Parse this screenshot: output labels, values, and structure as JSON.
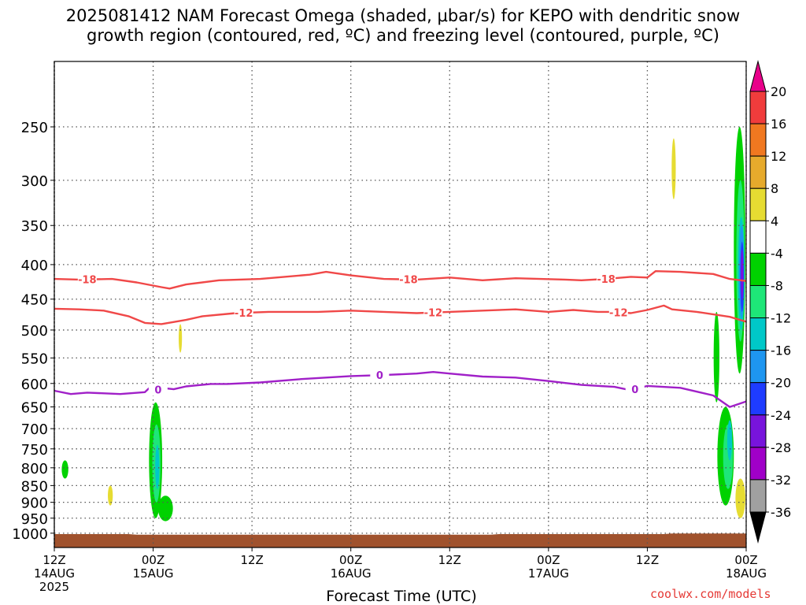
{
  "title": {
    "line1": "2025081412 NAM Forecast Omega (shaded, μbar/s) for KEPO with dendritic snow",
    "line2": "growth region (contoured, red, ºC) and freezing level (contoured, purple, ºC)"
  },
  "credit": "coolwx.com/models",
  "chart_data": {
    "type": "time-height",
    "xlabel": "Forecast Time (UTC)",
    "ylabel": "",
    "y_scale": "log-pressure",
    "ylim": [
      1050,
      200
    ],
    "xlim": [
      0,
      84
    ],
    "grid": true,
    "x_ticks": [
      {
        "hour": 0,
        "line1": "12Z",
        "line2": "14AUG",
        "line3": "2025"
      },
      {
        "hour": 12,
        "line1": "00Z",
        "line2": "15AUG",
        "line3": ""
      },
      {
        "hour": 24,
        "line1": "12Z",
        "line2": "",
        "line3": ""
      },
      {
        "hour": 36,
        "line1": "00Z",
        "line2": "16AUG",
        "line3": ""
      },
      {
        "hour": 48,
        "line1": "12Z",
        "line2": "",
        "line3": ""
      },
      {
        "hour": 60,
        "line1": "00Z",
        "line2": "17AUG",
        "line3": ""
      },
      {
        "hour": 72,
        "line1": "12Z",
        "line2": "",
        "line3": ""
      },
      {
        "hour": 84,
        "line1": "00Z",
        "line2": "18AUG",
        "line3": ""
      }
    ],
    "y_ticks": [
      250,
      300,
      350,
      400,
      450,
      500,
      550,
      600,
      650,
      700,
      750,
      800,
      850,
      900,
      950,
      1000
    ],
    "colorbar": {
      "labels": [
        "20",
        "16",
        "12",
        "8",
        "4",
        "-4",
        "-8",
        "-12",
        "-16",
        "-20",
        "-24",
        "-28",
        "-32",
        "-36"
      ],
      "colors": [
        "#e8008a",
        "#f03c3c",
        "#f07820",
        "#e6aa2c",
        "#e6dc32",
        "#ffffff",
        "#00d200",
        "#1ee678",
        "#00c8c8",
        "#1e96f0",
        "#1e3cff",
        "#7814dc",
        "#a000c8",
        "#a0a0a0",
        "#000000"
      ]
    },
    "contours": [
      {
        "name": "-18",
        "color": "#f04848",
        "label_hours": [
          4,
          43,
          67
        ],
        "points": [
          [
            0,
            420
          ],
          [
            3,
            421
          ],
          [
            7,
            420
          ],
          [
            10,
            425
          ],
          [
            13,
            432
          ],
          [
            14,
            434
          ],
          [
            16,
            428
          ],
          [
            20,
            422
          ],
          [
            25,
            420
          ],
          [
            31,
            414
          ],
          [
            33,
            410
          ],
          [
            36,
            415
          ],
          [
            40,
            420
          ],
          [
            44,
            421
          ],
          [
            48,
            418
          ],
          [
            52,
            422
          ],
          [
            56,
            419
          ],
          [
            62,
            421
          ],
          [
            64,
            422
          ],
          [
            67,
            420
          ],
          [
            70,
            417
          ],
          [
            72,
            418
          ],
          [
            73,
            409
          ],
          [
            76,
            410
          ],
          [
            80,
            413
          ],
          [
            82,
            420
          ],
          [
            84,
            423
          ]
        ]
      },
      {
        "name": "-12",
        "color": "#f04848",
        "label_hours": [
          23,
          46,
          68.5
        ],
        "points": [
          [
            0,
            465
          ],
          [
            3,
            466
          ],
          [
            6,
            468
          ],
          [
            9,
            477
          ],
          [
            11,
            488
          ],
          [
            13,
            490
          ],
          [
            16,
            483
          ],
          [
            18,
            477
          ],
          [
            22,
            472
          ],
          [
            26,
            470
          ],
          [
            32,
            470
          ],
          [
            36,
            468
          ],
          [
            40,
            470
          ],
          [
            44,
            472
          ],
          [
            48,
            470
          ],
          [
            52,
            468
          ],
          [
            56,
            466
          ],
          [
            60,
            470
          ],
          [
            63,
            467
          ],
          [
            66,
            470
          ],
          [
            68,
            470
          ],
          [
            70,
            472
          ],
          [
            72,
            467
          ],
          [
            74,
            460
          ],
          [
            75,
            466
          ],
          [
            78,
            470
          ],
          [
            82,
            478
          ],
          [
            84,
            486
          ]
        ]
      },
      {
        "name": "0",
        "color": "#a020c8",
        "label_hours": [
          12.6,
          39.5,
          70.5
        ],
        "points": [
          [
            0,
            615
          ],
          [
            2,
            622
          ],
          [
            4,
            619
          ],
          [
            8,
            622
          ],
          [
            11,
            618
          ],
          [
            11.5,
            610
          ],
          [
            12.5,
            613
          ],
          [
            13.5,
            610
          ],
          [
            14.5,
            612
          ],
          [
            16,
            606
          ],
          [
            19,
            601
          ],
          [
            21,
            601
          ],
          [
            25,
            598
          ],
          [
            30,
            591
          ],
          [
            36,
            585
          ],
          [
            40,
            583
          ],
          [
            44,
            580
          ],
          [
            46,
            577
          ],
          [
            48,
            580
          ],
          [
            52,
            586
          ],
          [
            56,
            588
          ],
          [
            60,
            595
          ],
          [
            64,
            603
          ],
          [
            68,
            607
          ],
          [
            70,
            614
          ],
          [
            72,
            605
          ],
          [
            76,
            609
          ],
          [
            80,
            625
          ],
          [
            82,
            650
          ],
          [
            84,
            638
          ]
        ]
      }
    ],
    "shaded": [
      {
        "value": -6,
        "color": "#00d200",
        "center": [
          1.3,
          795
        ],
        "rx_h": 0.4,
        "p_range": [
          780,
          830
        ]
      },
      {
        "value": 6,
        "color": "#e6dc32",
        "center": [
          6.8,
          880
        ],
        "rx_h": 0.3,
        "p_range": [
          850,
          910
        ]
      },
      {
        "value": -6,
        "color": "#00d200",
        "center": [
          12.3,
          790
        ],
        "rx_h": 0.8,
        "p_range": [
          640,
          950
        ]
      },
      {
        "value": -10,
        "color": "#1ee678",
        "center": [
          12.4,
          780
        ],
        "rx_h": 0.5,
        "p_range": [
          690,
          900
        ]
      },
      {
        "value": -14,
        "color": "#00c8c8",
        "center": [
          12.5,
          790
        ],
        "rx_h": 0.25,
        "p_range": [
          740,
          860
        ]
      },
      {
        "value": -6,
        "color": "#00d200",
        "center": [
          13.5,
          925
        ],
        "rx_h": 0.9,
        "p_range": [
          880,
          960
        ]
      },
      {
        "value": 6,
        "color": "#e6dc32",
        "center": [
          15.3,
          505
        ],
        "rx_h": 0.2,
        "p_range": [
          490,
          540
        ]
      },
      {
        "value": 6,
        "color": "#e6dc32",
        "center": [
          75.2,
          290
        ],
        "rx_h": 0.25,
        "p_range": [
          260,
          320
        ]
      },
      {
        "value": -6,
        "color": "#00d200",
        "center": [
          80.4,
          590
        ],
        "rx_h": 0.35,
        "p_range": [
          470,
          640
        ]
      },
      {
        "value": -6,
        "color": "#00d200",
        "center": [
          81.5,
          780
        ],
        "rx_h": 1.0,
        "p_range": [
          650,
          910
        ]
      },
      {
        "value": -10,
        "color": "#1ee678",
        "center": [
          81.8,
          780
        ],
        "rx_h": 0.6,
        "p_range": [
          690,
          860
        ]
      },
      {
        "value": -14,
        "color": "#00c8c8",
        "center": [
          82.0,
          720
        ],
        "rx_h": 0.3,
        "p_range": [
          680,
          780
        ]
      },
      {
        "value": 6,
        "color": "#e6dc32",
        "center": [
          83.3,
          880
        ],
        "rx_h": 0.6,
        "p_range": [
          830,
          950
        ]
      },
      {
        "value": -6,
        "color": "#00d200",
        "center": [
          83.2,
          400
        ],
        "rx_h": 0.7,
        "p_range": [
          250,
          580
        ]
      },
      {
        "value": -10,
        "color": "#1ee678",
        "center": [
          83.3,
          400
        ],
        "rx_h": 0.5,
        "p_range": [
          300,
          520
        ]
      },
      {
        "value": -14,
        "color": "#00c8c8",
        "center": [
          83.4,
          410
        ],
        "rx_h": 0.4,
        "p_range": [
          340,
          500
        ]
      },
      {
        "value": -18,
        "color": "#1e96f0",
        "center": [
          83.45,
          410
        ],
        "rx_h": 0.3,
        "p_range": [
          350,
          480
        ]
      },
      {
        "value": -22,
        "color": "#1e3cff",
        "center": [
          83.5,
          420
        ],
        "rx_h": 0.22,
        "p_range": [
          370,
          470
        ]
      },
      {
        "value": -26,
        "color": "#7814dc",
        "center": [
          83.5,
          410
        ],
        "rx_h": 0.15,
        "p_range": [
          380,
          450
        ]
      }
    ],
    "terrain": {
      "color": "#a0522d",
      "surface_pressure": [
        [
          0,
          1003
        ],
        [
          9,
          1003
        ],
        [
          10,
          1005
        ],
        [
          53,
          1005
        ],
        [
          54,
          1003
        ],
        [
          74,
          1003
        ],
        [
          75,
          1001
        ],
        [
          84,
          1001
        ]
      ]
    }
  }
}
